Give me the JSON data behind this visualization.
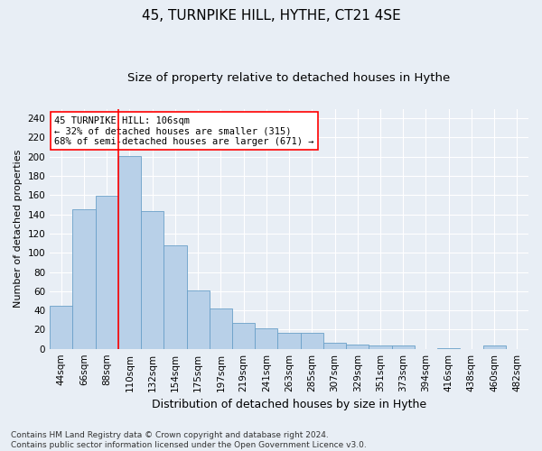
{
  "title": "45, TURNPIKE HILL, HYTHE, CT21 4SE",
  "subtitle": "Size of property relative to detached houses in Hythe",
  "xlabel": "Distribution of detached houses by size in Hythe",
  "ylabel": "Number of detached properties",
  "categories": [
    "44sqm",
    "66sqm",
    "88sqm",
    "110sqm",
    "132sqm",
    "154sqm",
    "175sqm",
    "197sqm",
    "219sqm",
    "241sqm",
    "263sqm",
    "285sqm",
    "307sqm",
    "329sqm",
    "351sqm",
    "373sqm",
    "394sqm",
    "416sqm",
    "438sqm",
    "460sqm",
    "482sqm"
  ],
  "values": [
    45,
    145,
    159,
    201,
    143,
    108,
    61,
    42,
    27,
    21,
    17,
    17,
    6,
    4,
    3,
    3,
    0,
    1,
    0,
    3,
    0
  ],
  "bar_color": "#b8d0e8",
  "bar_edge_color": "#6aa0c8",
  "vline_x_index": 3,
  "vline_color": "red",
  "annotation_text": "45 TURNPIKE HILL: 106sqm\n← 32% of detached houses are smaller (315)\n68% of semi-detached houses are larger (671) →",
  "annotation_box_color": "white",
  "annotation_box_edge": "red",
  "ylim": [
    0,
    250
  ],
  "yticks": [
    0,
    20,
    40,
    60,
    80,
    100,
    120,
    140,
    160,
    180,
    200,
    220,
    240
  ],
  "background_color": "#e8eef5",
  "grid_color": "white",
  "footer": "Contains HM Land Registry data © Crown copyright and database right 2024.\nContains public sector information licensed under the Open Government Licence v3.0.",
  "title_fontsize": 11,
  "subtitle_fontsize": 9.5,
  "xlabel_fontsize": 9,
  "ylabel_fontsize": 8,
  "tick_fontsize": 7.5,
  "annotation_fontsize": 7.5,
  "footer_fontsize": 6.5
}
